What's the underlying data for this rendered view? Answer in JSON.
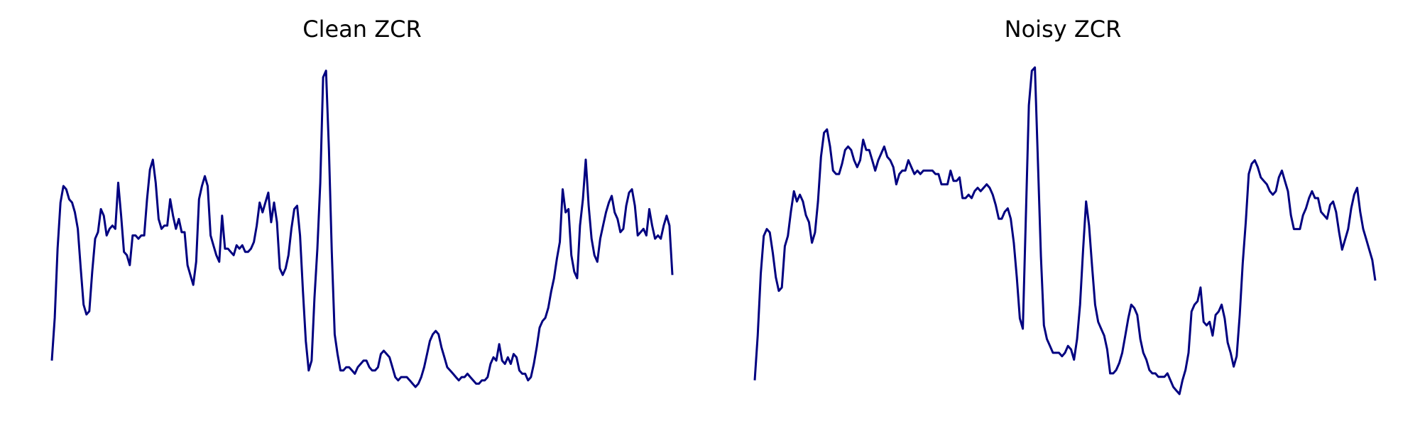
{
  "chart_data": [
    {
      "type": "line",
      "title": "Clean ZCR",
      "axis_visible": false,
      "color": "#000080",
      "values": [
        0.06,
        0.19,
        0.4,
        0.54,
        0.59,
        0.58,
        0.55,
        0.54,
        0.51,
        0.46,
        0.34,
        0.23,
        0.2,
        0.21,
        0.33,
        0.43,
        0.45,
        0.52,
        0.5,
        0.44,
        0.46,
        0.47,
        0.46,
        0.6,
        0.5,
        0.39,
        0.38,
        0.35,
        0.44,
        0.44,
        0.43,
        0.44,
        0.44,
        0.55,
        0.64,
        0.67,
        0.6,
        0.49,
        0.46,
        0.47,
        0.47,
        0.55,
        0.5,
        0.46,
        0.49,
        0.45,
        0.45,
        0.35,
        0.32,
        0.29,
        0.36,
        0.55,
        0.59,
        0.62,
        0.59,
        0.44,
        0.41,
        0.38,
        0.36,
        0.5,
        0.4,
        0.4,
        0.39,
        0.38,
        0.41,
        0.4,
        0.41,
        0.39,
        0.39,
        0.4,
        0.42,
        0.47,
        0.54,
        0.51,
        0.54,
        0.57,
        0.48,
        0.54,
        0.48,
        0.34,
        0.32,
        0.34,
        0.38,
        0.46,
        0.52,
        0.53,
        0.44,
        0.27,
        0.12,
        0.03,
        0.06,
        0.25,
        0.4,
        0.6,
        0.92,
        0.94,
        0.7,
        0.39,
        0.14,
        0.08,
        0.03,
        0.03,
        0.04,
        0.04,
        0.03,
        0.02,
        0.04,
        0.05,
        0.06,
        0.06,
        0.04,
        0.03,
        0.03,
        0.04,
        0.08,
        0.09,
        0.08,
        0.07,
        0.04,
        0.01,
        0.0,
        0.01,
        0.01,
        0.01,
        0.0,
        -0.01,
        -0.02,
        -0.01,
        0.01,
        0.04,
        0.08,
        0.12,
        0.14,
        0.15,
        0.14,
        0.1,
        0.07,
        0.04,
        0.03,
        0.02,
        0.01,
        0.0,
        0.01,
        0.01,
        0.02,
        0.01,
        0.0,
        -0.01,
        -0.01,
        0.0,
        0.0,
        0.01,
        0.05,
        0.07,
        0.06,
        0.11,
        0.06,
        0.05,
        0.07,
        0.05,
        0.08,
        0.07,
        0.03,
        0.02,
        0.02,
        0.0,
        0.01,
        0.05,
        0.1,
        0.16,
        0.18,
        0.19,
        0.22,
        0.27,
        0.31,
        0.37,
        0.42,
        0.58,
        0.51,
        0.52,
        0.38,
        0.33,
        0.31,
        0.47,
        0.55,
        0.67,
        0.53,
        0.43,
        0.38,
        0.36,
        0.43,
        0.47,
        0.51,
        0.54,
        0.56,
        0.51,
        0.49,
        0.45,
        0.46,
        0.53,
        0.57,
        0.58,
        0.53,
        0.44,
        0.45,
        0.46,
        0.44,
        0.52,
        0.47,
        0.43,
        0.44,
        0.43,
        0.47,
        0.5,
        0.47,
        0.32
      ]
    },
    {
      "type": "line",
      "title": "Noisy ZCR",
      "axis_visible": false,
      "color": "#000080",
      "values": [
        0.04,
        0.17,
        0.35,
        0.46,
        0.48,
        0.47,
        0.41,
        0.34,
        0.3,
        0.31,
        0.43,
        0.46,
        0.53,
        0.59,
        0.56,
        0.58,
        0.56,
        0.52,
        0.5,
        0.44,
        0.47,
        0.56,
        0.69,
        0.76,
        0.77,
        0.72,
        0.65,
        0.64,
        0.64,
        0.67,
        0.71,
        0.72,
        0.71,
        0.68,
        0.66,
        0.68,
        0.74,
        0.71,
        0.71,
        0.68,
        0.65,
        0.68,
        0.7,
        0.72,
        0.69,
        0.68,
        0.66,
        0.61,
        0.64,
        0.65,
        0.65,
        0.68,
        0.66,
        0.64,
        0.65,
        0.64,
        0.65,
        0.65,
        0.65,
        0.65,
        0.64,
        0.64,
        0.61,
        0.61,
        0.61,
        0.65,
        0.62,
        0.62,
        0.63,
        0.57,
        0.57,
        0.58,
        0.57,
        0.59,
        0.6,
        0.59,
        0.6,
        0.61,
        0.6,
        0.58,
        0.55,
        0.51,
        0.51,
        0.53,
        0.54,
        0.51,
        0.44,
        0.34,
        0.22,
        0.19,
        0.51,
        0.84,
        0.94,
        0.95,
        0.68,
        0.4,
        0.2,
        0.16,
        0.14,
        0.12,
        0.12,
        0.12,
        0.11,
        0.12,
        0.14,
        0.13,
        0.1,
        0.16,
        0.26,
        0.42,
        0.56,
        0.49,
        0.37,
        0.26,
        0.21,
        0.19,
        0.17,
        0.13,
        0.06,
        0.06,
        0.07,
        0.09,
        0.12,
        0.17,
        0.22,
        0.26,
        0.25,
        0.23,
        0.16,
        0.12,
        0.1,
        0.07,
        0.06,
        0.06,
        0.05,
        0.05,
        0.05,
        0.06,
        0.04,
        0.02,
        0.01,
        0.0,
        0.04,
        0.07,
        0.12,
        0.24,
        0.26,
        0.27,
        0.31,
        0.21,
        0.2,
        0.21,
        0.17,
        0.23,
        0.24,
        0.26,
        0.22,
        0.15,
        0.12,
        0.08,
        0.11,
        0.23,
        0.38,
        0.5,
        0.64,
        0.67,
        0.68,
        0.66,
        0.63,
        0.62,
        0.61,
        0.59,
        0.58,
        0.59,
        0.63,
        0.65,
        0.62,
        0.59,
        0.52,
        0.48,
        0.48,
        0.48,
        0.52,
        0.54,
        0.57,
        0.59,
        0.57,
        0.57,
        0.53,
        0.52,
        0.51,
        0.55,
        0.56,
        0.53,
        0.47,
        0.42,
        0.45,
        0.48,
        0.54,
        0.58,
        0.6,
        0.53,
        0.48,
        0.45,
        0.42,
        0.39,
        0.33
      ]
    }
  ]
}
